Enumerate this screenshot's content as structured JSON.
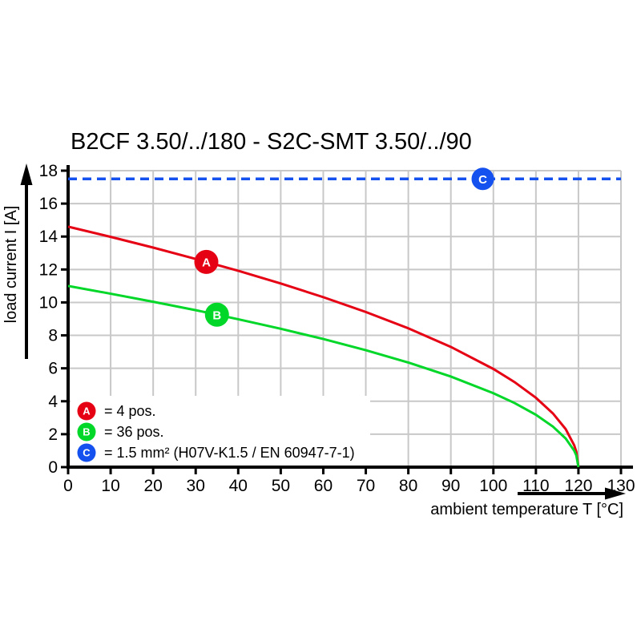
{
  "title": "B2CF 3.50/../180 - S2C-SMT 3.50/../90",
  "colors": {
    "grid": "#c8c8c8",
    "axis": "#000000",
    "background": "#ffffff",
    "series_a_red": "#e60014",
    "series_b_green": "#00d728",
    "series_c_blue": "#1551ee"
  },
  "chart_data": {
    "type": "line",
    "title": "B2CF 3.50/../180 - S2C-SMT 3.50/../90",
    "xlabel": "ambient temperature T [°C]",
    "ylabel": "load current I [A]",
    "xlim": [
      0,
      130
    ],
    "ylim": [
      0,
      18
    ],
    "xticks": [
      0,
      10,
      20,
      30,
      40,
      50,
      60,
      70,
      80,
      90,
      100,
      110,
      120,
      130
    ],
    "yticks": [
      0,
      2,
      4,
      6,
      8,
      10,
      12,
      14,
      16,
      18
    ],
    "grid": true,
    "legend_position": "bottom-left",
    "series": [
      {
        "id": "A",
        "label": "= 4 pos.",
        "color": "#e60014",
        "line_style": "solid",
        "marker_t": 32.5,
        "points": [
          [
            0,
            14.6
          ],
          [
            10,
            13.98
          ],
          [
            20,
            13.33
          ],
          [
            30,
            12.64
          ],
          [
            40,
            11.92
          ],
          [
            50,
            11.15
          ],
          [
            60,
            10.32
          ],
          [
            70,
            9.42
          ],
          [
            80,
            8.43
          ],
          [
            90,
            7.3
          ],
          [
            100,
            5.96
          ],
          [
            105,
            5.16
          ],
          [
            110,
            4.21
          ],
          [
            114,
            3.26
          ],
          [
            117,
            2.31
          ],
          [
            119,
            1.33
          ],
          [
            119.5,
            0.94
          ],
          [
            120,
            0
          ]
        ]
      },
      {
        "id": "B",
        "label": "= 36 pos.",
        "color": "#00d728",
        "line_style": "solid",
        "marker_t": 35,
        "points": [
          [
            0,
            11.0
          ],
          [
            10,
            10.53
          ],
          [
            20,
            10.04
          ],
          [
            30,
            9.53
          ],
          [
            40,
            8.98
          ],
          [
            50,
            8.4
          ],
          [
            60,
            7.78
          ],
          [
            70,
            7.1
          ],
          [
            80,
            6.35
          ],
          [
            90,
            5.5
          ],
          [
            100,
            4.49
          ],
          [
            105,
            3.89
          ],
          [
            110,
            3.18
          ],
          [
            114,
            2.46
          ],
          [
            117,
            1.74
          ],
          [
            119,
            1.0
          ],
          [
            119.5,
            0.71
          ],
          [
            120,
            0
          ]
        ]
      },
      {
        "id": "C",
        "label": "= 1.5 mm² (H07V-K1.5 / EN 60947-7-1)",
        "color": "#1551ee",
        "line_style": "dashed",
        "marker_t": 97.5,
        "points": [
          [
            0,
            17.5
          ],
          [
            130,
            17.5
          ]
        ]
      }
    ]
  }
}
